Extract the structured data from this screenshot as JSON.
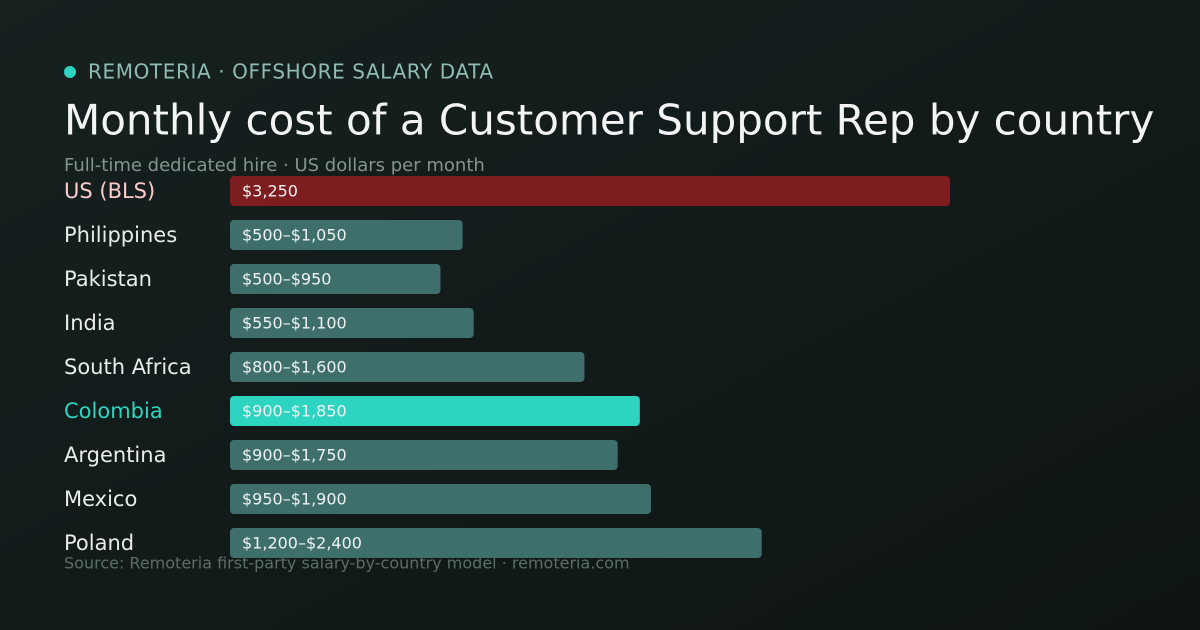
{
  "header": {
    "eyebrow": "REMOTERIA · OFFSHORE SALARY DATA"
  },
  "chart_data": {
    "type": "bar",
    "orientation": "horizontal",
    "title": "Monthly cost of a Customer Support Rep by country",
    "subtitle": "Full-time dedicated hire · US dollars per month",
    "source": "Source: Remoteria first-party salary-by-country model · remoteria.com",
    "categories": [
      "US (BLS)",
      "Philippines",
      "Pakistan",
      "India",
      "South Africa",
      "Colombia",
      "Argentina",
      "Mexico",
      "Poland"
    ],
    "values": [
      3250,
      1050,
      950,
      1100,
      1600,
      1850,
      1750,
      1900,
      2400
    ],
    "value_labels": [
      "$3,250",
      "$500–$1,050",
      "$500–$950",
      "$550–$1,100",
      "$800–$1,600",
      "$900–$1,850",
      "$900–$1,750",
      "$950–$1,900",
      "$1,200–$2,400"
    ],
    "colors": [
      "#7d1d1f",
      "#3f6f6b",
      "#3f6f6b",
      "#3f6f6b",
      "#3f6f6b",
      "#2dd4bf",
      "#3f6f6b",
      "#3f6f6b",
      "#3f6f6b"
    ],
    "label_colors": [
      "#fecaca",
      "#e8ecea",
      "#e8ecea",
      "#e8ecea",
      "#e8ecea",
      "#2dd4bf",
      "#e8ecea",
      "#e8ecea",
      "#e8ecea"
    ],
    "xlim": [
      0,
      3250
    ]
  }
}
